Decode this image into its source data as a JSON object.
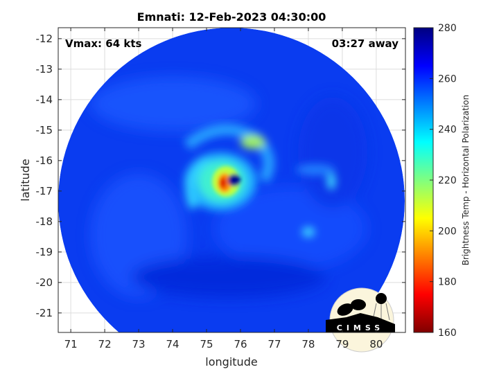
{
  "chart_data": {
    "type": "heatmap",
    "title": "Emnati: 12-Feb-2023 04:30:00",
    "xlabel": "longitude",
    "ylabel": "latitude",
    "xlim": [
      70.63,
      80.86
    ],
    "ylim": [
      -21.64,
      -11.64
    ],
    "xticks": [
      71,
      72,
      73,
      74,
      75,
      76,
      77,
      78,
      79,
      80
    ],
    "yticks": [
      -12,
      -13,
      -14,
      -15,
      -16,
      -17,
      -18,
      -19,
      -20,
      -21
    ],
    "grid": true,
    "annotations": {
      "vmax": "Vmax: 64 kts",
      "time_offset": "03:27 away"
    },
    "colorbar": {
      "label": "Brightness Temp - Horizontal Polarization",
      "range": [
        160,
        280
      ],
      "ticks": [
        160,
        180,
        200,
        220,
        240,
        260,
        280
      ],
      "colormap": "jet"
    },
    "storm_center": {
      "lon": 75.6,
      "lat": -16.9
    },
    "background_value": 265,
    "min_value_near_eye": 185
  },
  "logo": "CIMSS"
}
